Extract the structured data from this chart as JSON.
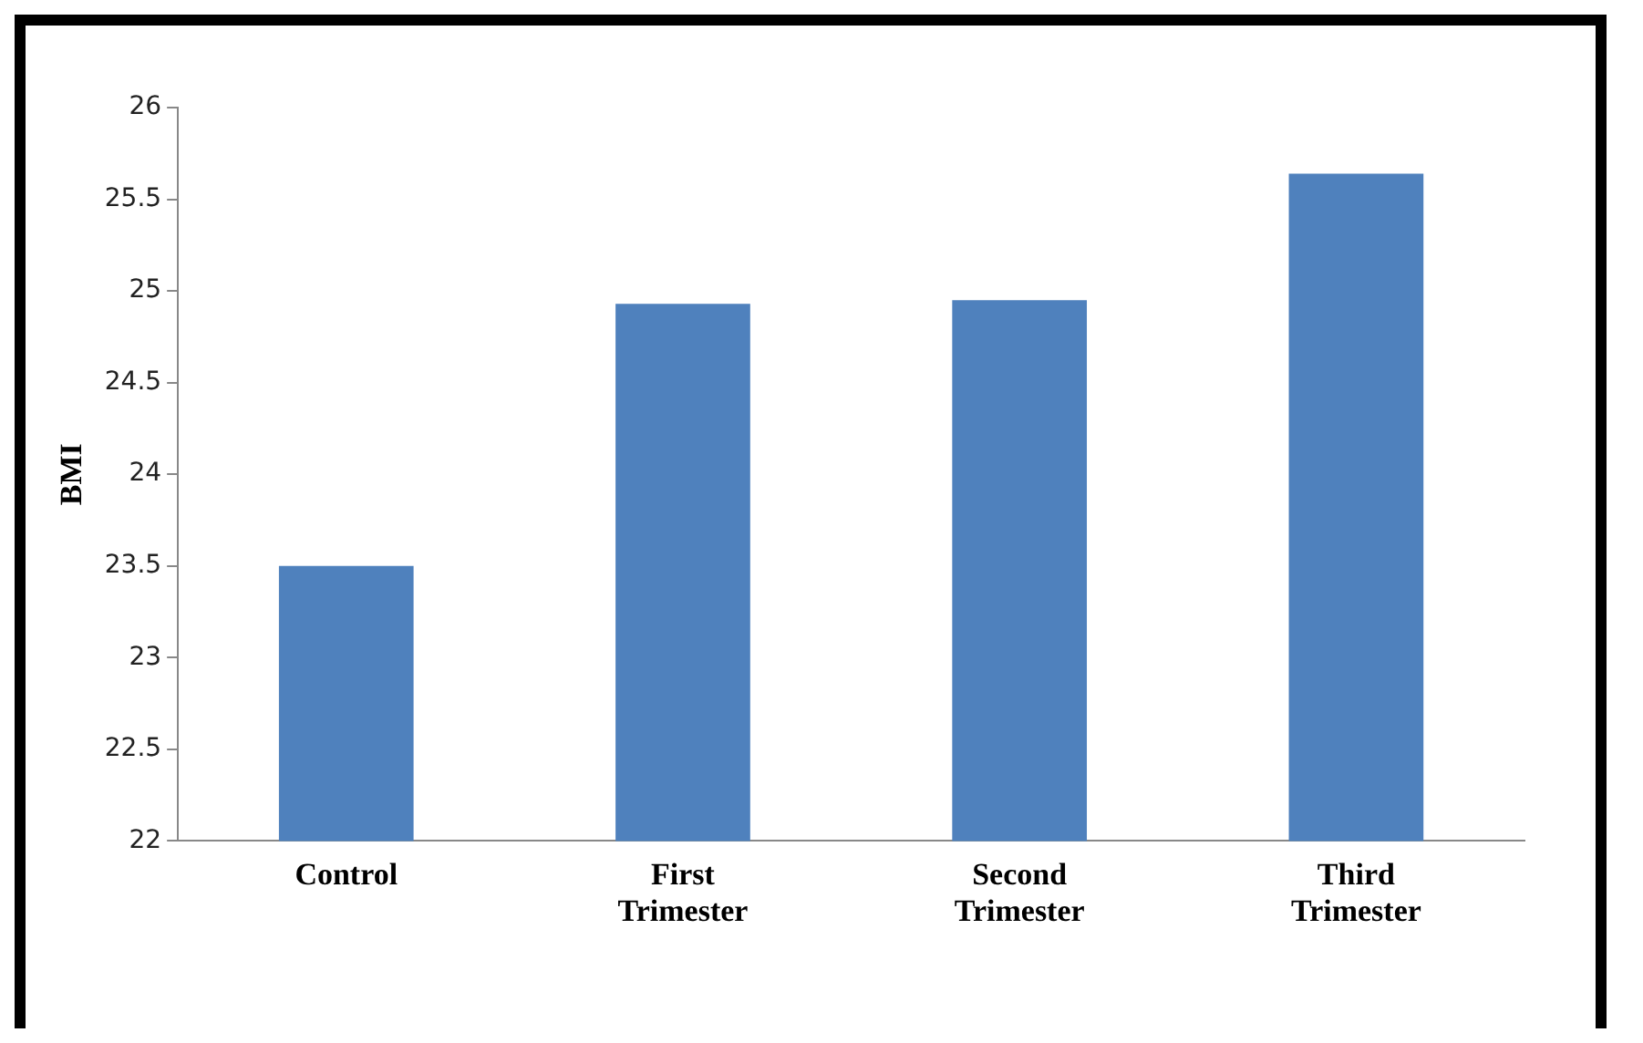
{
  "chart_data": {
    "type": "bar",
    "ylabel": "BMI",
    "categories": [
      "Control",
      "First Trimester",
      "Second Trimester",
      "Third Trimester"
    ],
    "values": [
      23.5,
      24.93,
      24.95,
      25.64
    ],
    "color": "#4f81bd",
    "ylim": [
      22,
      26
    ],
    "yticks": [
      22,
      22.5,
      23,
      23.5,
      24,
      24.5,
      25,
      25.5,
      26
    ],
    "grid": false,
    "legend": false
  }
}
